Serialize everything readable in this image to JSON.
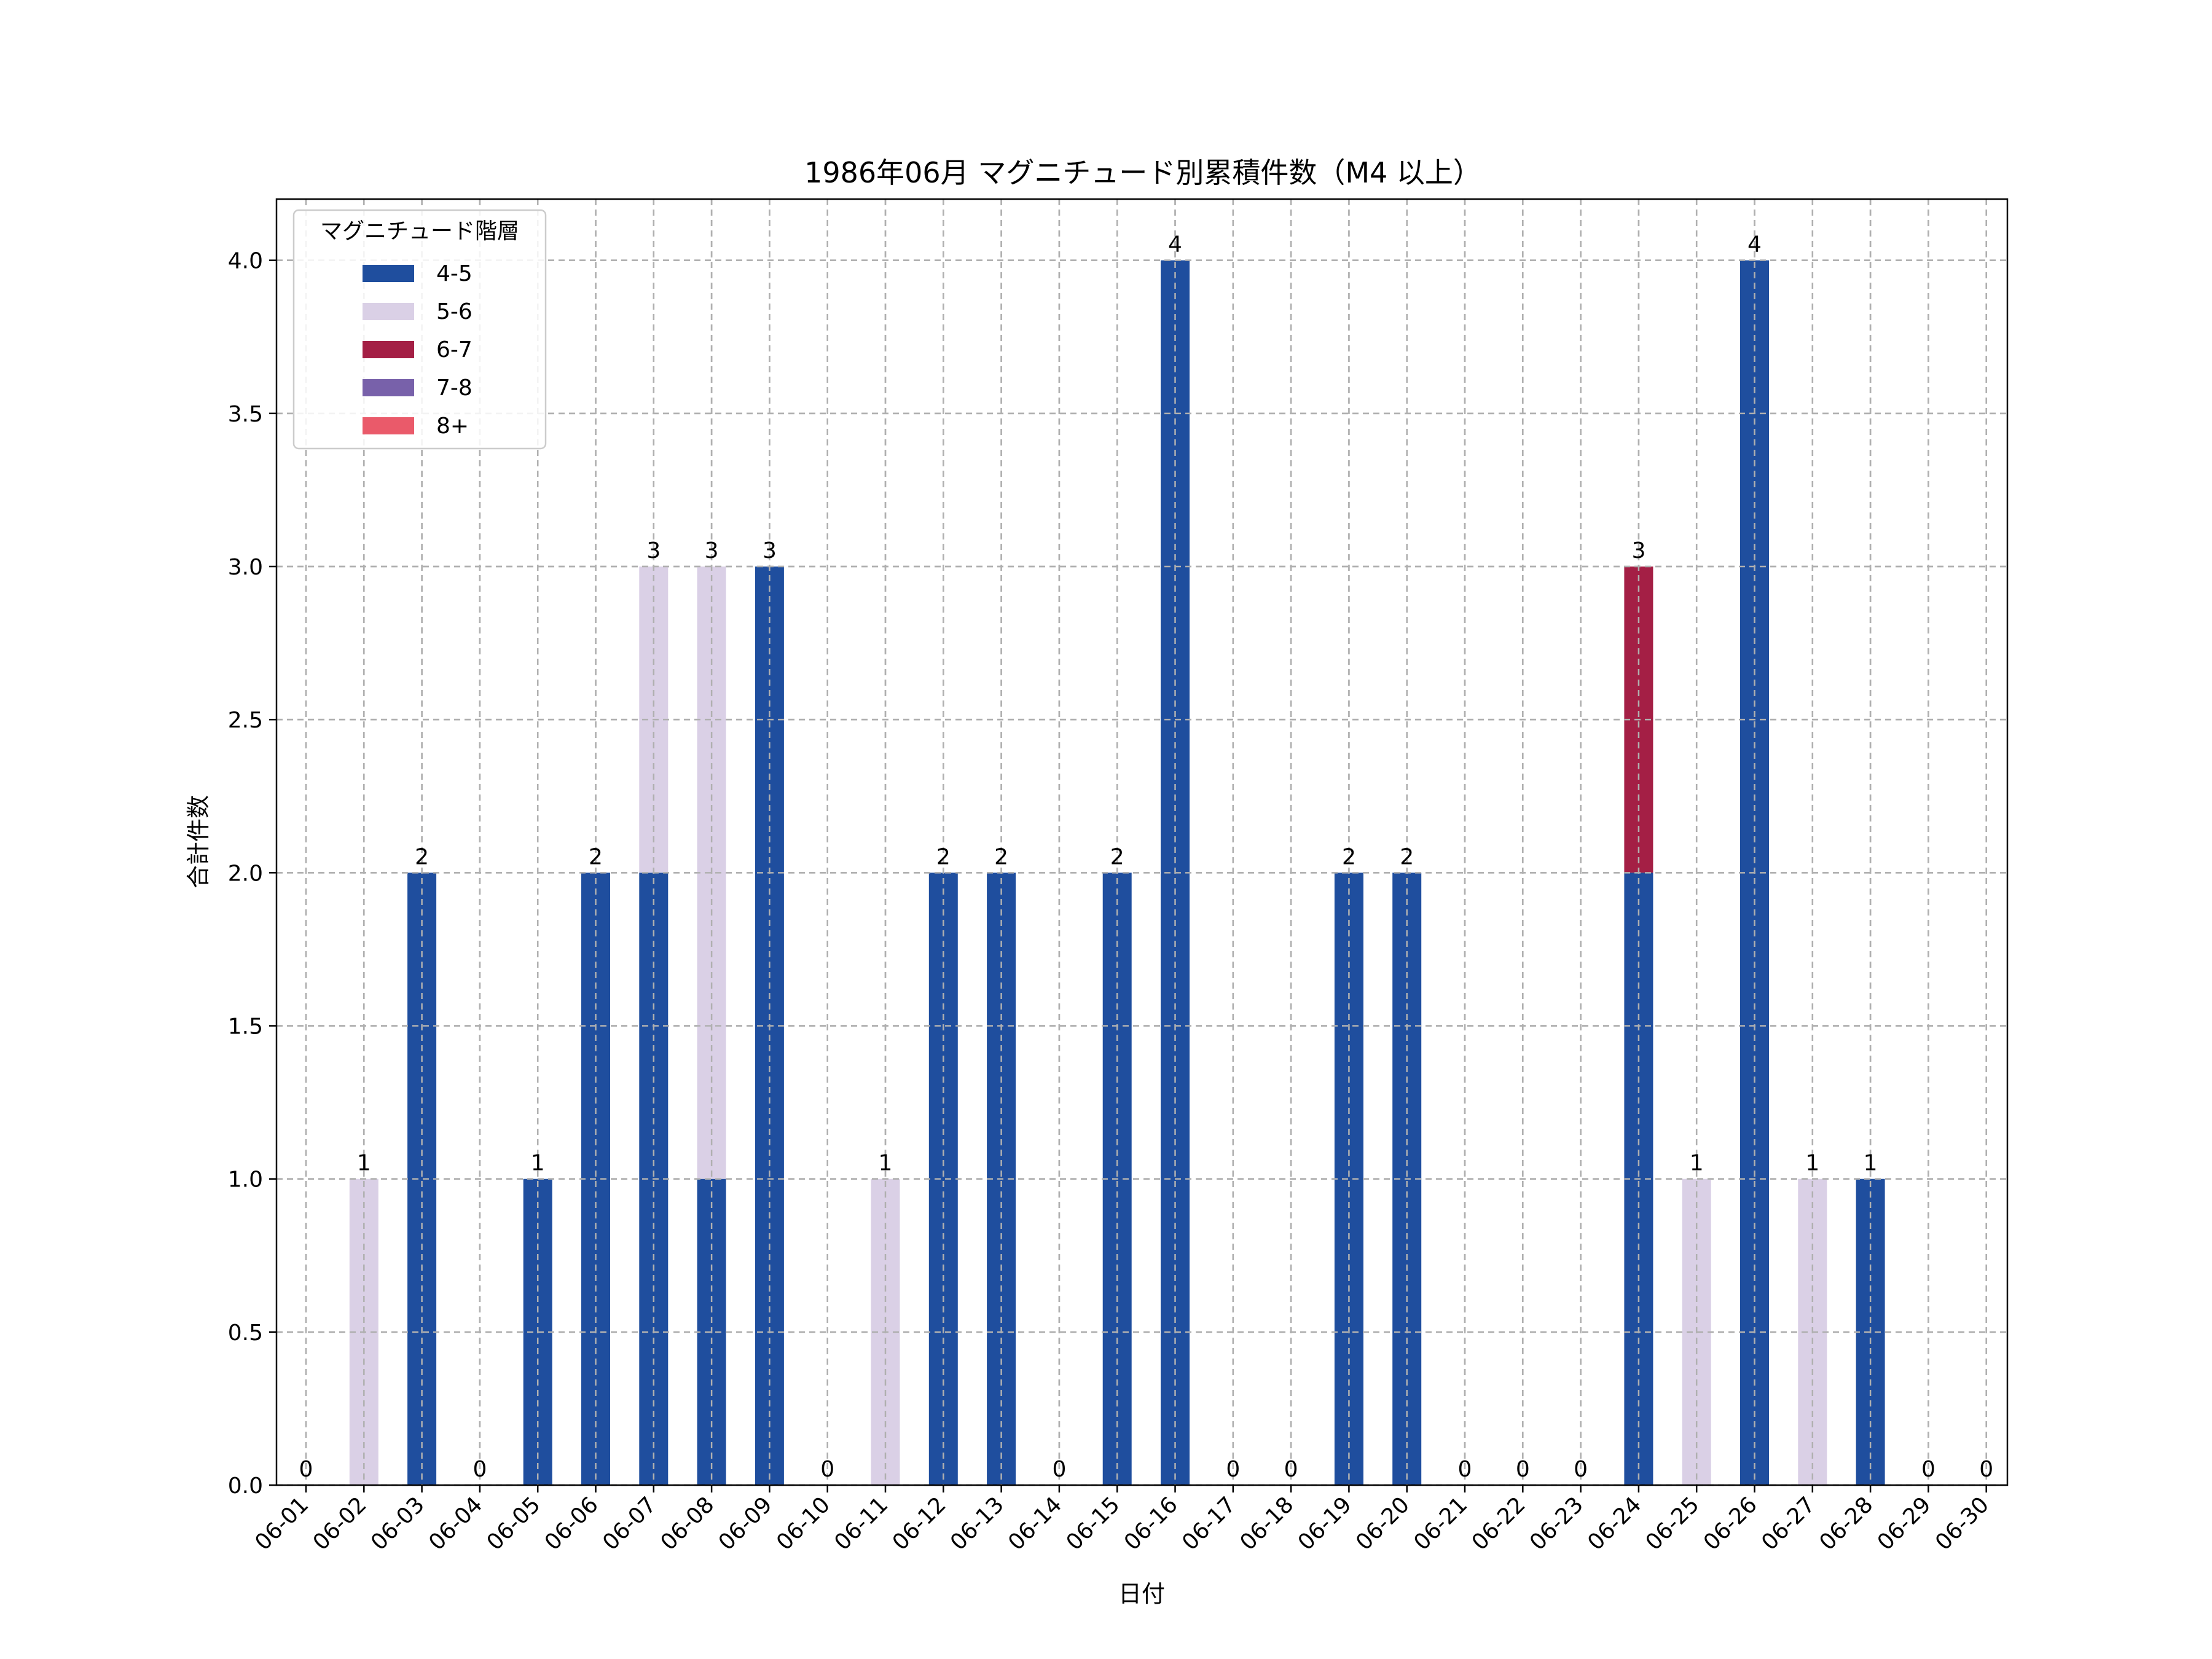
{
  "chart_data": {
    "type": "bar",
    "stacked": true,
    "title": "1986年06月 マグニチュード別累積件数（M4 以上）",
    "xlabel": "日付",
    "ylabel": "合計件数",
    "ylim": [
      0,
      4.2
    ],
    "yticks": [
      0.0,
      0.5,
      1.0,
      1.5,
      2.0,
      2.5,
      3.0,
      3.5,
      4.0
    ],
    "grid": true,
    "legend": {
      "title": "マグニチュード階層",
      "position": "top-left"
    },
    "categories": [
      "06-01",
      "06-02",
      "06-03",
      "06-04",
      "06-05",
      "06-06",
      "06-07",
      "06-08",
      "06-09",
      "06-10",
      "06-11",
      "06-12",
      "06-13",
      "06-14",
      "06-15",
      "06-16",
      "06-17",
      "06-18",
      "06-19",
      "06-20",
      "06-21",
      "06-22",
      "06-23",
      "06-24",
      "06-25",
      "06-26",
      "06-27",
      "06-28",
      "06-29",
      "06-30"
    ],
    "series": [
      {
        "name": "4-5",
        "color": "#1f4e9e",
        "values": [
          0,
          0,
          2,
          0,
          1,
          2,
          2,
          1,
          3,
          0,
          0,
          2,
          2,
          0,
          2,
          4,
          0,
          0,
          2,
          2,
          0,
          0,
          0,
          2,
          0,
          4,
          0,
          1,
          0,
          0
        ]
      },
      {
        "name": "5-6",
        "color": "#dad0e6",
        "values": [
          0,
          1,
          0,
          0,
          0,
          0,
          1,
          2,
          0,
          0,
          1,
          0,
          0,
          0,
          0,
          0,
          0,
          0,
          0,
          0,
          0,
          0,
          0,
          0,
          1,
          0,
          1,
          0,
          0,
          0
        ]
      },
      {
        "name": "6-7",
        "color": "#a41f45",
        "values": [
          0,
          0,
          0,
          0,
          0,
          0,
          0,
          0,
          0,
          0,
          0,
          0,
          0,
          0,
          0,
          0,
          0,
          0,
          0,
          0,
          0,
          0,
          0,
          1,
          0,
          0,
          0,
          0,
          0,
          0
        ]
      },
      {
        "name": "7-8",
        "color": "#7861aa",
        "values": [
          0,
          0,
          0,
          0,
          0,
          0,
          0,
          0,
          0,
          0,
          0,
          0,
          0,
          0,
          0,
          0,
          0,
          0,
          0,
          0,
          0,
          0,
          0,
          0,
          0,
          0,
          0,
          0,
          0,
          0
        ]
      },
      {
        "name": "8+",
        "color": "#ea5a6a",
        "values": [
          0,
          0,
          0,
          0,
          0,
          0,
          0,
          0,
          0,
          0,
          0,
          0,
          0,
          0,
          0,
          0,
          0,
          0,
          0,
          0,
          0,
          0,
          0,
          0,
          0,
          0,
          0,
          0,
          0,
          0
        ]
      }
    ],
    "totals": [
      0,
      1,
      2,
      0,
      1,
      2,
      3,
      3,
      3,
      0,
      1,
      2,
      2,
      0,
      2,
      4,
      0,
      0,
      2,
      2,
      0,
      0,
      0,
      3,
      1,
      4,
      1,
      1,
      0,
      0
    ]
  }
}
